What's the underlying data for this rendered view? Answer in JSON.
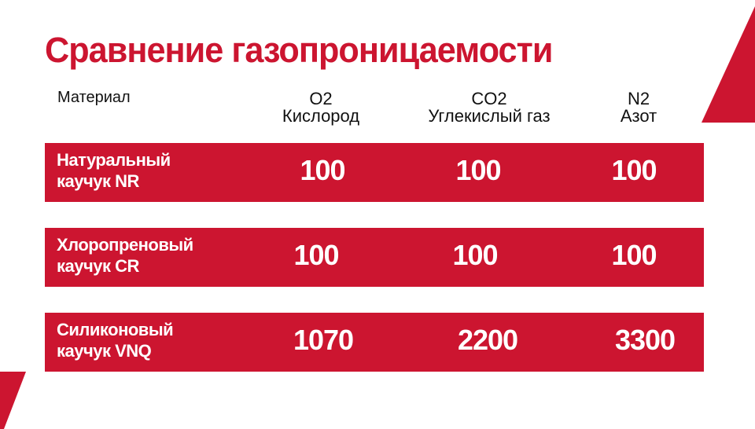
{
  "title": "Сравнение газопроницаемости",
  "colors": {
    "accent": "#cc1530",
    "text": "#111111",
    "row_text": "#ffffff"
  },
  "headers": {
    "material": "Материал",
    "columns": [
      {
        "formula": "O2",
        "name": "Кислород"
      },
      {
        "formula": "CO2",
        "name": "Углекислый газ"
      },
      {
        "formula": "N2",
        "name": "Азот"
      }
    ]
  },
  "rows": [
    {
      "name_line1": "Натуральный",
      "name_line2": "каучук NR",
      "values": [
        "100",
        "100",
        "100"
      ]
    },
    {
      "name_line1": "Хлоропреновый",
      "name_line2": "каучук CR",
      "values": [
        "100",
        "100",
        "100"
      ]
    },
    {
      "name_line1": "Силиконовый",
      "name_line2": "каучук VNQ",
      "values": [
        "1070",
        "2200",
        "3300"
      ]
    }
  ]
}
